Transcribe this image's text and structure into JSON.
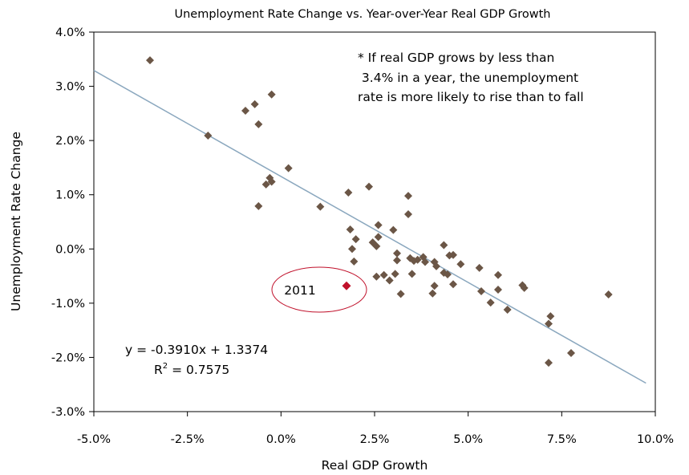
{
  "chart_data": {
    "type": "scatter",
    "title": "Unemployment Rate Change vs. Year-over-Year Real GDP Growth",
    "xlabel": "Real GDP Growth",
    "ylabel": "Unemployment Rate Change",
    "xlim": [
      -5.0,
      10.0
    ],
    "ylim": [
      -3.0,
      4.0
    ],
    "x_ticks": [
      "-5.0%",
      "-2.5%",
      "0.0%",
      "2.5%",
      "5.0%",
      "7.5%",
      "10.0%"
    ],
    "y_ticks": [
      "4.0%",
      "3.0%",
      "2.0%",
      "1.0%",
      "0.0%",
      "-1.0%",
      "-2.0%",
      "-3.0%"
    ],
    "grid": false,
    "legend": "none",
    "point_color": "#6b5646",
    "highlight_color": "#c0102a",
    "trend_color": "#8aa7be",
    "trendline": {
      "slope": -0.391,
      "intercept": 1.3374
    },
    "equation_text": "y = -0.3910x + 1.3374",
    "r2_label": "R",
    "r2_sup": "2",
    "r2_value": " = 0.7575",
    "note_lines": [
      "* If real GDP grows by less than",
      " 3.4% in a year, the unemployment",
      "rate is more likely to rise than to fall"
    ],
    "highlight": {
      "label": "2011",
      "x": 1.75,
      "y": -0.68
    },
    "points": [
      [
        -3.5,
        3.48
      ],
      [
        -1.95,
        2.09
      ],
      [
        -0.95,
        2.55
      ],
      [
        -0.7,
        2.67
      ],
      [
        -0.6,
        2.3
      ],
      [
        -0.25,
        2.85
      ],
      [
        -0.6,
        0.79
      ],
      [
        -0.4,
        1.19
      ],
      [
        -0.3,
        1.31
      ],
      [
        -0.25,
        1.24
      ],
      [
        0.2,
        1.49
      ],
      [
        1.05,
        0.78
      ],
      [
        1.8,
        1.04
      ],
      [
        2.35,
        1.15
      ],
      [
        1.85,
        0.36
      ],
      [
        2.0,
        0.18
      ],
      [
        1.9,
        0.0
      ],
      [
        1.95,
        -0.23
      ],
      [
        2.45,
        0.12
      ],
      [
        2.55,
        0.05
      ],
      [
        2.6,
        0.44
      ],
      [
        2.6,
        0.22
      ],
      [
        2.55,
        -0.51
      ],
      [
        2.75,
        -0.48
      ],
      [
        2.9,
        -0.58
      ],
      [
        3.0,
        0.35
      ],
      [
        3.1,
        -0.08
      ],
      [
        3.1,
        -0.21
      ],
      [
        3.05,
        -0.46
      ],
      [
        3.2,
        -0.83
      ],
      [
        3.4,
        0.98
      ],
      [
        3.4,
        0.64
      ],
      [
        3.45,
        -0.17
      ],
      [
        3.5,
        -0.46
      ],
      [
        3.55,
        -0.22
      ],
      [
        3.65,
        -0.2
      ],
      [
        3.8,
        -0.15
      ],
      [
        3.85,
        -0.24
      ],
      [
        4.05,
        -0.82
      ],
      [
        4.1,
        -0.68
      ],
      [
        4.1,
        -0.24
      ],
      [
        4.15,
        -0.32
      ],
      [
        4.35,
        0.07
      ],
      [
        4.35,
        -0.44
      ],
      [
        4.45,
        -0.47
      ],
      [
        4.5,
        -0.12
      ],
      [
        4.6,
        -0.11
      ],
      [
        4.6,
        -0.65
      ],
      [
        4.8,
        -0.28
      ],
      [
        5.3,
        -0.35
      ],
      [
        5.35,
        -0.78
      ],
      [
        5.6,
        -0.99
      ],
      [
        5.8,
        -0.48
      ],
      [
        5.8,
        -0.75
      ],
      [
        6.05,
        -1.12
      ],
      [
        6.45,
        -0.67
      ],
      [
        6.5,
        -0.72
      ],
      [
        7.15,
        -1.38
      ],
      [
        7.2,
        -1.24
      ],
      [
        7.15,
        -2.1
      ],
      [
        7.75,
        -1.92
      ],
      [
        8.75,
        -0.84
      ]
    ]
  }
}
